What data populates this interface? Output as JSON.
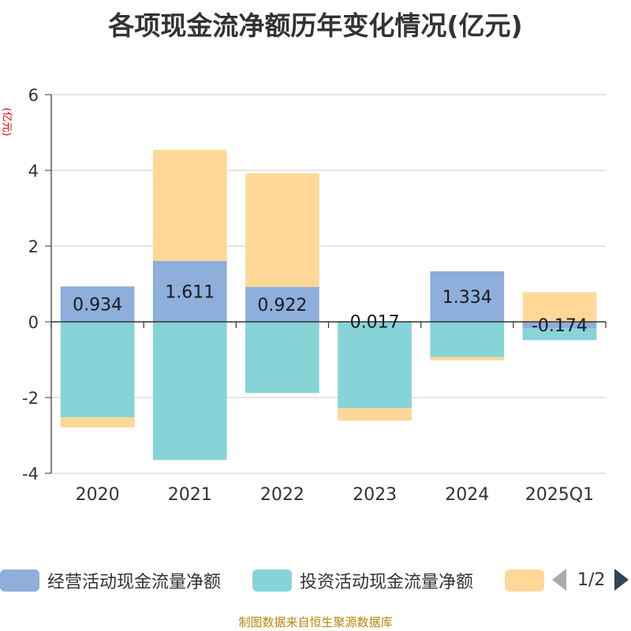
{
  "title": "各项现金流净额历年变化情况(亿元)",
  "unit_label": "(亿元)",
  "legend": {
    "items": [
      {
        "label": "经营活动现金流量净额",
        "color": "#8eaedb"
      },
      {
        "label": "投资活动现金流量净额",
        "color": "#86d4d8"
      },
      {
        "label": "",
        "color": "#ffd898"
      }
    ],
    "page_indicator": "1/2"
  },
  "footer": "制图数据来自恒生聚源数据库",
  "chart_data": {
    "type": "bar",
    "stacked": true,
    "categories": [
      "2020",
      "2021",
      "2022",
      "2023",
      "2024",
      "2025Q1"
    ],
    "series": [
      {
        "name": "经营活动现金流量净额",
        "color": "#8eaedb",
        "values": [
          0.934,
          1.611,
          0.922,
          0.017,
          1.334,
          -0.174
        ]
      },
      {
        "name": "投资活动现金流量净额",
        "color": "#86d4d8",
        "values": [
          -2.52,
          -3.65,
          -1.88,
          -2.28,
          -0.93,
          -0.31
        ]
      },
      {
        "color": "#ffd898",
        "values": [
          -0.27,
          2.93,
          3.0,
          -0.33,
          -0.09,
          0.78
        ]
      }
    ],
    "data_labels": [
      "0.934",
      "1.611",
      "0.922",
      "0.017",
      "1.334",
      "-0.174"
    ],
    "ylim": [
      -4,
      6
    ],
    "yticks": [
      -4,
      -2,
      0,
      2,
      4,
      6
    ],
    "grid": true,
    "legend_position": "bottom"
  }
}
